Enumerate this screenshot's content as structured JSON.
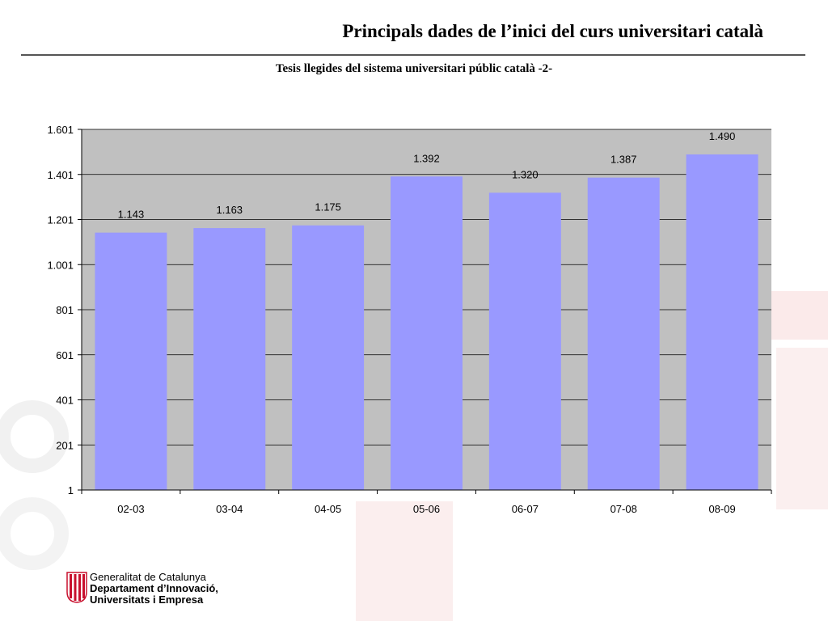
{
  "slide": {
    "title": "Principals dades de l’inici del curs universitari català"
  },
  "footer": {
    "line1": "Generalitat de Catalunya",
    "line2": "Departament d’Innovació,",
    "line3": "Universitats i Empresa"
  },
  "chart_data": {
    "type": "bar",
    "title": "Tesis llegides del sistema universitari públic català -2-",
    "xlabel": "",
    "ylabel": "",
    "categories": [
      "02-03",
      "03-04",
      "04-05",
      "05-06",
      "06-07",
      "07-08",
      "08-09"
    ],
    "values": [
      1143,
      1163,
      1175,
      1392,
      1320,
      1387,
      1490
    ],
    "value_labels": [
      "1.143",
      "1.163",
      "1.175",
      "1.392",
      "1.320",
      "1.387",
      "1.490"
    ],
    "yticks": [
      1,
      201,
      401,
      601,
      801,
      1001,
      1201,
      1401,
      1601
    ],
    "ytick_labels": [
      "1",
      "201",
      "401",
      "601",
      "801",
      "1.001",
      "1.201",
      "1.401",
      "1.601"
    ],
    "ylim": [
      1,
      1601
    ],
    "grid": true,
    "legend": "none",
    "colors": {
      "bar": "#9999ff",
      "plot_bg": "#c0c0c0",
      "grid": "#000000"
    }
  }
}
